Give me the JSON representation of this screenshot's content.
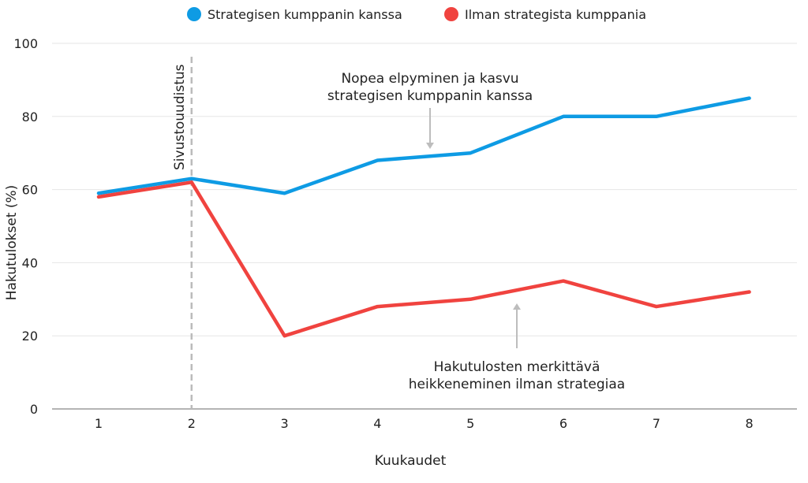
{
  "chart_data": {
    "type": "line",
    "x": [
      1,
      2,
      3,
      4,
      5,
      6,
      7,
      8
    ],
    "series": [
      {
        "name": "Strategisen kumppanin kanssa",
        "color": "#0e9be4",
        "values": [
          59,
          63,
          59,
          68,
          70,
          80,
          80,
          85
        ]
      },
      {
        "name": "Ilman strategista kumppania",
        "color": "#f0433f",
        "values": [
          58,
          62,
          20,
          28,
          30,
          35,
          28,
          32
        ]
      }
    ],
    "xlabel": "Kuukaudet",
    "ylabel": "Hakutulokset (%)",
    "ylim": [
      0,
      100
    ],
    "yticks": [
      0,
      20,
      40,
      60,
      80,
      100
    ],
    "grid": "horizontal",
    "legend_position": "top-center",
    "event_marker": {
      "x": 2,
      "label": "Sivustouudistus"
    },
    "annotations": [
      {
        "lines": [
          "Nopea elpyminen ja kasvu",
          "strategisen kumppanin kanssa"
        ],
        "target_series": 0
      },
      {
        "lines": [
          "Hakutulosten merkittävä",
          "heikkeneminen ilman strategiaa"
        ],
        "target_series": 1
      }
    ]
  }
}
